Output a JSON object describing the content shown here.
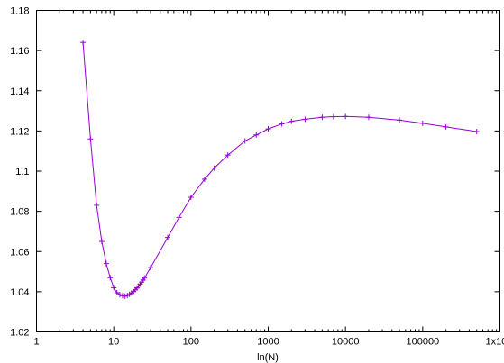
{
  "chart_data": {
    "type": "line",
    "title": "",
    "xlabel": "ln(N)",
    "ylabel": "",
    "xscale": "log",
    "xlim": [
      1,
      1000000
    ],
    "ylim": [
      1.02,
      1.18
    ],
    "grid": false,
    "legend": "none",
    "x_ticks": [
      "1",
      "10",
      "100",
      "1000",
      "10000",
      "100000"
    ],
    "x_tick_last": {
      "base": "1x10",
      "exponent": "6"
    },
    "y_ticks": [
      "1.02",
      "1.04",
      "1.06",
      "1.08",
      "1.1",
      "1.12",
      "1.14",
      "1.16",
      "1.18"
    ],
    "series": [
      {
        "color": "#9400d3",
        "marker": "plus",
        "x": [
          4,
          5,
          6,
          7,
          8,
          9,
          10,
          11,
          12,
          13,
          14,
          15,
          16,
          17,
          18,
          19,
          20,
          21,
          22,
          23,
          24,
          25,
          30,
          50,
          70,
          100,
          150,
          200,
          300,
          500,
          700,
          1000,
          1500,
          2000,
          3000,
          5000,
          7000,
          10000,
          20000,
          50000,
          100000,
          200000,
          500000
        ],
        "y": [
          1.164,
          1.116,
          1.083,
          1.065,
          1.054,
          1.047,
          1.042,
          1.0395,
          1.0385,
          1.038,
          1.0378,
          1.0381,
          1.0387,
          1.0394,
          1.0401,
          1.041,
          1.0419,
          1.0428,
          1.0438,
          1.0448,
          1.0458,
          1.0468,
          1.052,
          1.067,
          1.077,
          1.087,
          1.096,
          1.1015,
          1.108,
          1.115,
          1.118,
          1.121,
          1.1235,
          1.1248,
          1.1258,
          1.1268,
          1.1271,
          1.1272,
          1.1268,
          1.1254,
          1.1238,
          1.122,
          1.1197
        ]
      }
    ]
  }
}
